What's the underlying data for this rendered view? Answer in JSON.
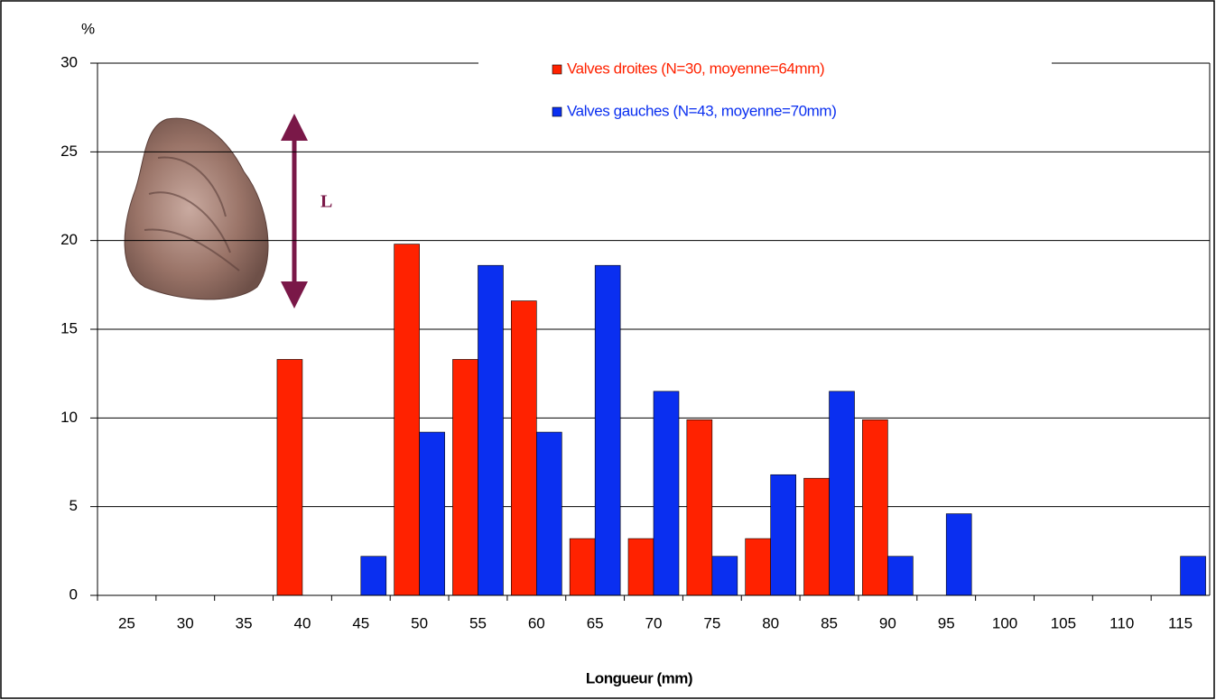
{
  "chart_data": {
    "type": "bar",
    "y_label": "%",
    "x_label": "Longueur (mm)",
    "annotation": "L",
    "categories": [
      "25",
      "30",
      "35",
      "40",
      "45",
      "50",
      "55",
      "60",
      "65",
      "70",
      "75",
      "80",
      "85",
      "90",
      "95",
      "100",
      "105",
      "110",
      "115"
    ],
    "series": [
      {
        "name": "Valves droites (N=30, moyenne=64mm)",
        "color": "#ff2200",
        "values": [
          0,
          0,
          0,
          13.3,
          0,
          19.8,
          13.3,
          16.6,
          3.2,
          3.2,
          9.9,
          3.2,
          6.6,
          9.9,
          0,
          0,
          0,
          0,
          0
        ]
      },
      {
        "name": "Valves gauches (N=43, moyenne=70mm)",
        "color": "#0a2ff0",
        "values": [
          0,
          0,
          0,
          0,
          2.2,
          9.2,
          18.6,
          9.2,
          18.6,
          11.5,
          2.2,
          6.8,
          11.5,
          2.2,
          4.6,
          0,
          0,
          0,
          2.2
        ]
      }
    ],
    "ylim": [
      0,
      30
    ],
    "yticks": [
      0,
      5,
      10,
      15,
      20,
      25,
      30
    ],
    "grid": true
  }
}
